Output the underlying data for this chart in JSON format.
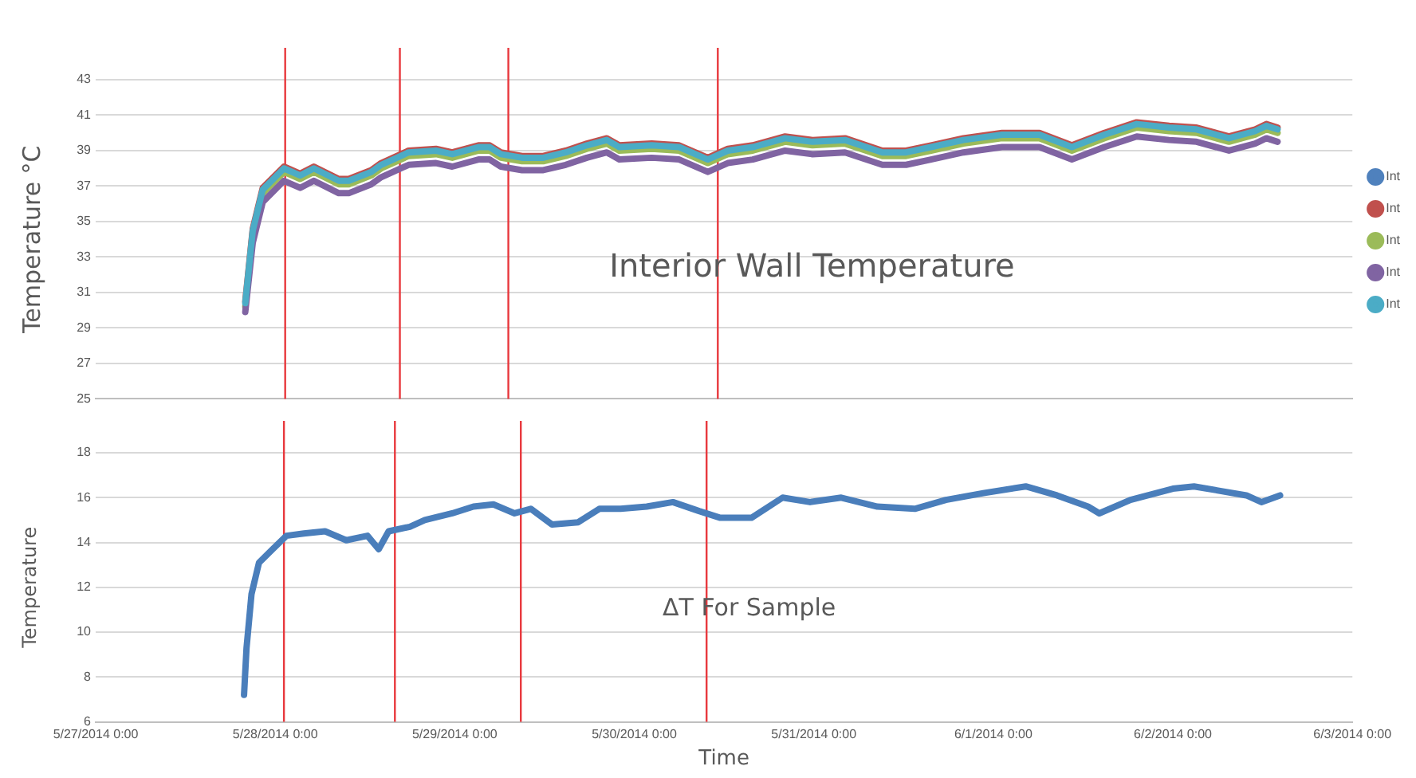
{
  "chart_data": [
    {
      "type": "line",
      "title": "Interior Wall Temperature",
      "ylabel": "Temperature °C",
      "legend": "right",
      "grid": "y",
      "tick_labels": "y",
      "xlim": [
        "2014-05-27T00:00",
        "2014-06-03T00:00"
      ],
      "ylim": [
        25,
        43
      ],
      "yticks": [
        25,
        27,
        29,
        31,
        33,
        35,
        37,
        39,
        41,
        43
      ],
      "x": [
        "2014-05-27T20:00",
        "2014-05-27T21:00",
        "2014-05-27T22:20",
        "2014-05-28T01:10",
        "2014-05-28T03:20",
        "2014-05-28T05:10",
        "2014-05-28T08:30",
        "2014-05-28T09:50",
        "2014-05-28T12:50",
        "2014-05-28T14:10",
        "2014-05-28T17:50",
        "2014-05-28T21:30",
        "2014-05-28T23:40",
        "2014-05-29T03:10",
        "2014-05-29T04:40",
        "2014-05-29T06:10",
        "2014-05-29T09:00",
        "2014-05-29T11:50",
        "2014-05-29T14:50",
        "2014-05-29T17:40",
        "2014-05-29T20:20",
        "2014-05-29T22:00",
        "2014-05-30T02:20",
        "2014-05-30T06:00",
        "2014-05-30T09:50",
        "2014-05-30T12:30",
        "2014-05-30T15:50",
        "2014-05-30T20:10",
        "2014-05-30T23:50",
        "2014-05-31T04:10",
        "2014-05-31T09:10",
        "2014-05-31T12:20",
        "2014-05-31T15:40",
        "2014-05-31T20:00",
        "2014-06-01T01:10",
        "2014-06-01T06:10",
        "2014-06-01T10:30",
        "2014-06-01T14:50",
        "2014-06-01T19:10",
        "2014-06-01T23:30",
        "2014-06-02T03:10",
        "2014-06-02T07:30",
        "2014-06-02T11:00",
        "2014-06-02T12:30",
        "2014-06-02T14:00"
      ],
      "series": [
        {
          "name": "Int",
          "color": "#4f81bd",
          "values": [
            null,
            null,
            null,
            null,
            null,
            null,
            null,
            null,
            null,
            null,
            null,
            null,
            null,
            null,
            null,
            null,
            null,
            null,
            null,
            null,
            null,
            null,
            null,
            null,
            null,
            null,
            null,
            null,
            null,
            null,
            null,
            null,
            null,
            null,
            null,
            null,
            null,
            null,
            null,
            null,
            null,
            null,
            null,
            null,
            null
          ]
        },
        {
          "name": "Int",
          "color": "#c0504d",
          "values": [
            30.5,
            34.6,
            36.9,
            38.1,
            37.7,
            38.1,
            37.4,
            37.4,
            37.9,
            38.3,
            39.0,
            39.1,
            38.9,
            39.3,
            39.3,
            38.9,
            38.7,
            38.7,
            39.0,
            39.4,
            39.7,
            39.3,
            39.4,
            39.3,
            38.6,
            39.1,
            39.3,
            39.8,
            39.6,
            39.7,
            39.0,
            39.0,
            39.3,
            39.7,
            40.0,
            40.0,
            39.3,
            40.0,
            40.6,
            40.4,
            40.3,
            39.8,
            40.2,
            40.5,
            40.3
          ]
        },
        {
          "name": "Int",
          "color": "#9bbb59",
          "values": [
            30.2,
            34.3,
            36.6,
            37.8,
            37.4,
            37.8,
            37.1,
            37.1,
            37.6,
            38.0,
            38.7,
            38.8,
            38.6,
            39.0,
            39.0,
            38.6,
            38.4,
            38.4,
            38.7,
            39.1,
            39.4,
            39.0,
            39.1,
            39.0,
            38.3,
            38.8,
            39.0,
            39.5,
            39.3,
            39.4,
            38.7,
            38.7,
            39.0,
            39.4,
            39.7,
            39.7,
            39.0,
            39.7,
            40.3,
            40.1,
            40.0,
            39.5,
            39.9,
            40.2,
            40.0
          ]
        },
        {
          "name": "Int",
          "color": "#8064a2",
          "values": [
            29.9,
            33.8,
            36.1,
            37.3,
            36.9,
            37.3,
            36.6,
            36.6,
            37.1,
            37.5,
            38.2,
            38.3,
            38.1,
            38.5,
            38.5,
            38.1,
            37.9,
            37.9,
            38.2,
            38.6,
            38.9,
            38.5,
            38.6,
            38.5,
            37.8,
            38.3,
            38.5,
            39.0,
            38.8,
            38.9,
            38.2,
            38.2,
            38.5,
            38.9,
            39.2,
            39.2,
            38.5,
            39.2,
            39.8,
            39.6,
            39.5,
            39.0,
            39.4,
            39.7,
            39.5
          ]
        },
        {
          "name": "Int",
          "color": "#4bacc6",
          "values": [
            30.4,
            34.5,
            36.8,
            38.0,
            37.6,
            38.0,
            37.3,
            37.3,
            37.8,
            38.2,
            38.9,
            39.0,
            38.8,
            39.2,
            39.2,
            38.8,
            38.6,
            38.6,
            38.9,
            39.3,
            39.6,
            39.2,
            39.3,
            39.2,
            38.5,
            39.0,
            39.2,
            39.7,
            39.5,
            39.6,
            38.9,
            38.9,
            39.2,
            39.6,
            39.9,
            39.9,
            39.2,
            39.9,
            40.5,
            40.3,
            40.2,
            39.7,
            40.1,
            40.4,
            40.2
          ]
        }
      ],
      "ref_lines": [
        {
          "axis": "x",
          "value": "2014-05-28T01:20",
          "color": "#e8383d"
        },
        {
          "axis": "x",
          "value": "2014-05-28T16:40",
          "color": "#e8383d"
        },
        {
          "axis": "x",
          "value": "2014-05-29T07:10",
          "color": "#e8383d"
        },
        {
          "axis": "x",
          "value": "2014-05-30T11:10",
          "color": "#e8383d"
        }
      ]
    },
    {
      "type": "line",
      "title": "ΔT For Sample",
      "xlabel": "Time",
      "ylabel": "Temperature",
      "grid": "y",
      "xlim": [
        "2014-05-27T00:00",
        "2014-06-03T00:00"
      ],
      "ylim": [
        6,
        18
      ],
      "yticks": [
        6,
        8,
        10,
        12,
        14,
        16,
        18
      ],
      "xticks": [
        {
          "value": "2014-05-27T00:00",
          "label": "5/27/2014 0:00"
        },
        {
          "value": "2014-05-28T00:00",
          "label": "5/28/2014 0:00"
        },
        {
          "value": "2014-05-29T00:00",
          "label": "5/29/2014 0:00"
        },
        {
          "value": "2014-05-30T00:00",
          "label": "5/30/2014 0:00"
        },
        {
          "value": "2014-05-31T00:00",
          "label": "5/31/2014 0:00"
        },
        {
          "value": "2014-06-01T00:00",
          "label": "6/1/2014 0:00"
        },
        {
          "value": "2014-06-02T00:00",
          "label": "6/2/2014 0:00"
        },
        {
          "value": "2014-06-03T00:00",
          "label": "6/3/2014 0:00"
        }
      ],
      "x": [
        "2014-05-27T19:50",
        "2014-05-27T20:10",
        "2014-05-27T20:50",
        "2014-05-27T21:50",
        "2014-05-27T23:40",
        "2014-05-28T01:30",
        "2014-05-28T03:50",
        "2014-05-28T06:40",
        "2014-05-28T09:30",
        "2014-05-28T12:20",
        "2014-05-28T13:50",
        "2014-05-28T15:10",
        "2014-05-28T18:00",
        "2014-05-28T20:00",
        "2014-05-28T23:40",
        "2014-05-29T02:30",
        "2014-05-29T05:10",
        "2014-05-29T08:00",
        "2014-05-29T10:10",
        "2014-05-29T13:00",
        "2014-05-29T16:30",
        "2014-05-29T19:20",
        "2014-05-29T22:10",
        "2014-05-30T01:40",
        "2014-05-30T05:10",
        "2014-05-30T08:40",
        "2014-05-30T11:30",
        "2014-05-30T15:40",
        "2014-05-30T19:50",
        "2014-05-30T23:30",
        "2014-05-31T03:40",
        "2014-05-31T08:30",
        "2014-05-31T13:30",
        "2014-05-31T17:40",
        "2014-05-31T22:40",
        "2014-06-01T04:20",
        "2014-06-01T08:30",
        "2014-06-01T12:40",
        "2014-06-01T14:10",
        "2014-06-01T18:20",
        "2014-06-02T00:00",
        "2014-06-02T02:50",
        "2014-06-02T06:20",
        "2014-06-02T09:50",
        "2014-06-02T11:50",
        "2014-06-02T14:20"
      ],
      "series": [
        {
          "color": "#4a7ebb",
          "values": [
            7.2,
            9.3,
            11.7,
            13.1,
            13.7,
            14.3,
            14.4,
            14.5,
            14.1,
            14.3,
            13.7,
            14.5,
            14.7,
            15.0,
            15.3,
            15.6,
            15.7,
            15.3,
            15.5,
            14.8,
            14.9,
            15.5,
            15.5,
            15.6,
            15.8,
            15.4,
            15.1,
            15.1,
            16.0,
            15.8,
            16.0,
            15.6,
            15.5,
            15.9,
            16.2,
            16.5,
            16.1,
            15.6,
            15.3,
            15.9,
            16.4,
            16.5,
            16.3,
            16.1,
            15.8,
            16.1
          ]
        }
      ],
      "ref_lines": [
        {
          "axis": "x",
          "value": "2014-05-28T01:10",
          "color": "#e8383d"
        },
        {
          "axis": "x",
          "value": "2014-05-28T16:00",
          "color": "#e8383d"
        },
        {
          "axis": "x",
          "value": "2014-05-29T08:50",
          "color": "#e8383d"
        },
        {
          "axis": "x",
          "value": "2014-05-30T09:40",
          "color": "#e8383d"
        }
      ]
    }
  ]
}
